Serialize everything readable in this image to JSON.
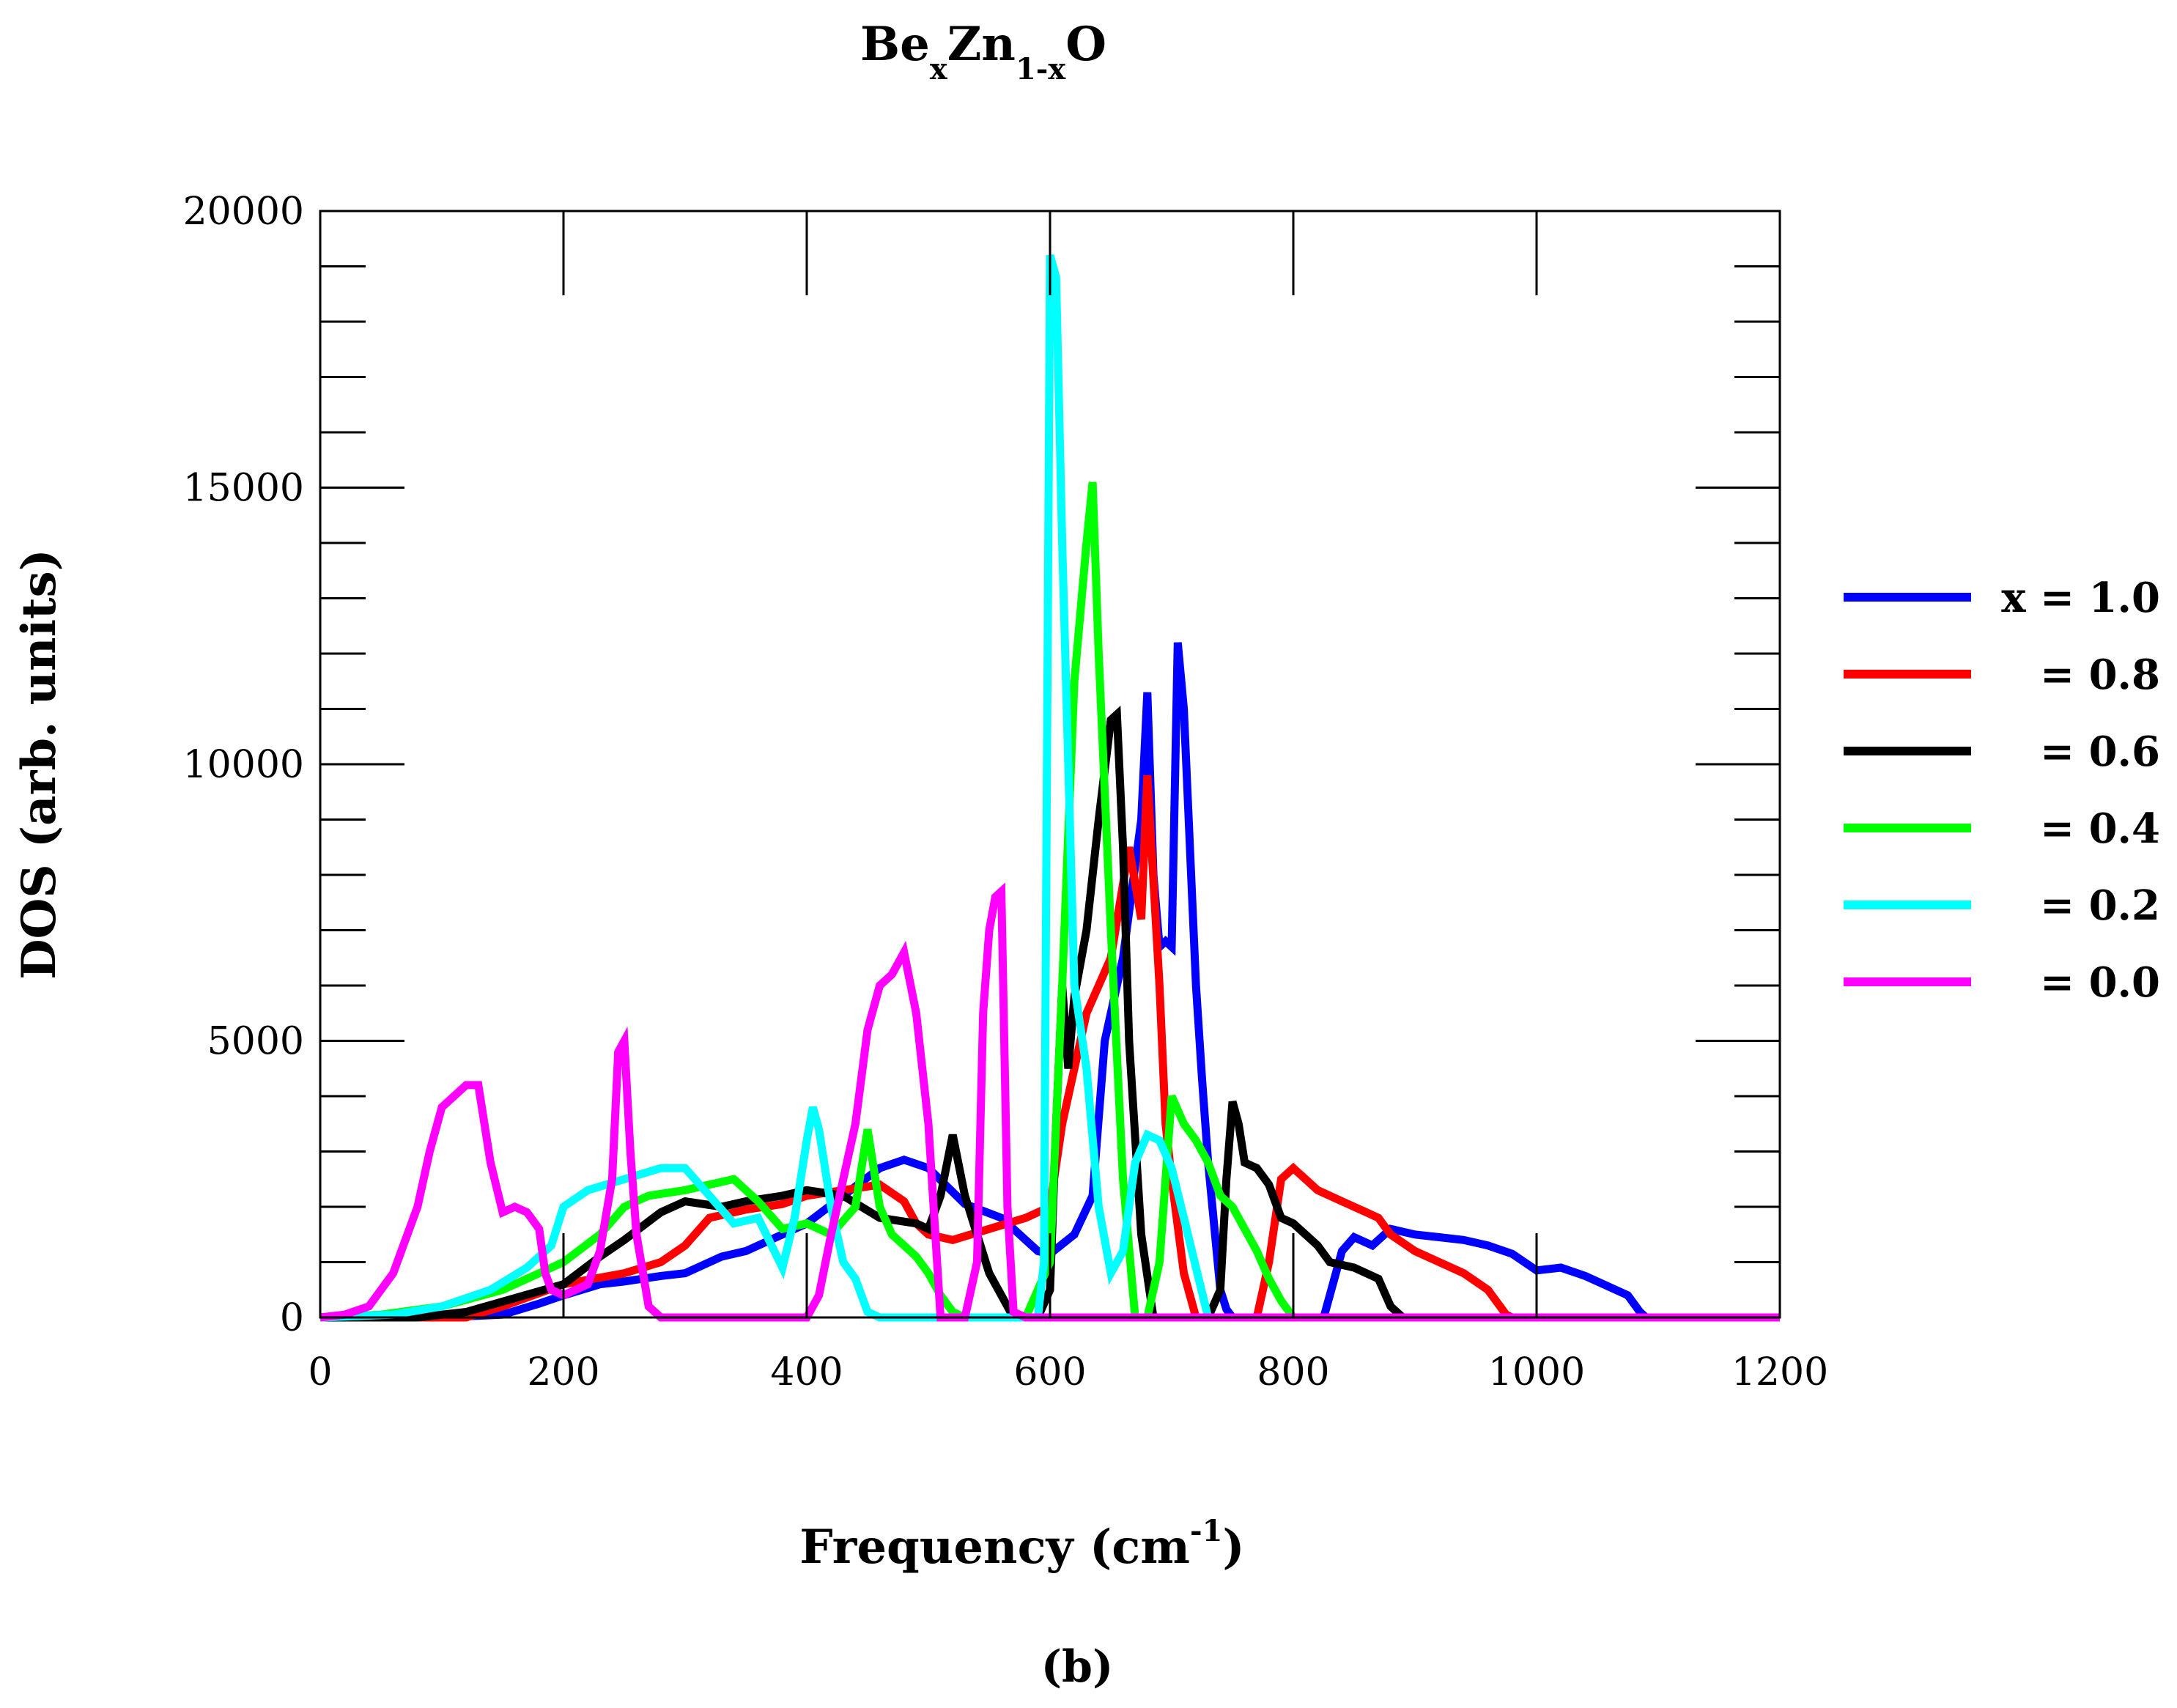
{
  "chart_data": {
    "type": "line",
    "title": {
      "parts": [
        "Be",
        "x",
        "Zn",
        "1-x",
        "O"
      ]
    },
    "xlabel": {
      "main": "Frequency (cm",
      "sup": "-1",
      "close": ")"
    },
    "ylabel": "DOS (arb. units)",
    "subcaption": "(b)",
    "xlim": [
      0,
      1200
    ],
    "ylim": [
      0,
      20000
    ],
    "xticks": [
      0,
      200,
      400,
      600,
      800,
      1000,
      1200
    ],
    "xtick_labels": [
      "0",
      "200",
      "400",
      "600",
      "800",
      "1000",
      "1200"
    ],
    "yticks": [
      0,
      5000,
      10000,
      15000,
      20000
    ],
    "ytick_labels": [
      "0",
      "5000",
      "10000",
      "15000",
      "20000"
    ],
    "x_minor_step": 200,
    "y_minor_step": 1000,
    "grid": false,
    "legend_position": "right",
    "series": [
      {
        "name": "x = 1.0",
        "color": "#0000ff",
        "x": [
          0,
          100,
          150,
          180,
          200,
          230,
          250,
          280,
          300,
          330,
          350,
          380,
          400,
          430,
          460,
          480,
          500,
          530,
          560,
          590,
          600,
          620,
          635,
          645,
          660,
          675,
          680,
          685,
          690,
          695,
          700,
          705,
          710,
          720,
          725,
          730,
          740,
          745,
          750,
          770,
          800,
          825,
          840,
          850,
          865,
          880,
          900,
          920,
          940,
          960,
          980,
          1000,
          1020,
          1040,
          1060,
          1075,
          1085,
          1090,
          1100,
          1200
        ],
        "y": [
          0,
          0,
          50,
          250,
          400,
          600,
          650,
          750,
          800,
          1100,
          1200,
          1500,
          1700,
          2200,
          2700,
          2850,
          2700,
          2050,
          1800,
          1200,
          1150,
          1500,
          2200,
          5000,
          6500,
          9000,
          11300,
          8000,
          6700,
          6800,
          6700,
          12200,
          11000,
          6000,
          4300,
          2800,
          500,
          150,
          0,
          0,
          0,
          0,
          1200,
          1450,
          1300,
          1600,
          1500,
          1450,
          1400,
          1300,
          1150,
          850,
          900,
          750,
          550,
          400,
          100,
          0,
          0,
          0
        ]
      },
      {
        "name": "= 0.8",
        "color": "#ff0000",
        "x": [
          0,
          120,
          150,
          200,
          250,
          280,
          300,
          320,
          350,
          380,
          400,
          430,
          460,
          480,
          490,
          500,
          520,
          550,
          580,
          590,
          600,
          610,
          630,
          650,
          665,
          675,
          680,
          690,
          695,
          700,
          710,
          720,
          730,
          760,
          770,
          775,
          780,
          790,
          800,
          820,
          840,
          860,
          870,
          880,
          900,
          920,
          940,
          960,
          970,
          975,
          980,
          1200
        ],
        "y": [
          0,
          0,
          200,
          600,
          800,
          1000,
          1300,
          1800,
          1950,
          2050,
          2200,
          2300,
          2400,
          2100,
          1700,
          1500,
          1400,
          1600,
          1800,
          1900,
          2000,
          3500,
          5500,
          6500,
          8500,
          7200,
          9800,
          6000,
          3500,
          2500,
          800,
          0,
          0,
          0,
          0,
          500,
          1000,
          2500,
          2700,
          2300,
          2100,
          1900,
          1800,
          1500,
          1200,
          1000,
          800,
          500,
          200,
          50,
          0,
          0
        ]
      },
      {
        "name": "= 0.6",
        "color": "#000000",
        "x": [
          0,
          80,
          120,
          200,
          230,
          250,
          280,
          300,
          330,
          350,
          380,
          400,
          430,
          460,
          490,
          500,
          510,
          520,
          530,
          540,
          550,
          570,
          580,
          590,
          600,
          605,
          610,
          615,
          620,
          630,
          640,
          650,
          655,
          660,
          665,
          675,
          685,
          690,
          695,
          700,
          730,
          740,
          745,
          750,
          755,
          760,
          770,
          780,
          790,
          800,
          820,
          830,
          850,
          870,
          880,
          890,
          1200
        ],
        "y": [
          0,
          0,
          100,
          600,
          1100,
          1400,
          1900,
          2100,
          2000,
          2100,
          2200,
          2300,
          2200,
          1800,
          1700,
          1600,
          2200,
          3300,
          2200,
          1500,
          800,
          0,
          0,
          0,
          500,
          3500,
          6000,
          4500,
          5800,
          7000,
          9000,
          10800,
          10900,
          8500,
          5000,
          1500,
          0,
          0,
          0,
          0,
          0,
          500,
          2500,
          3900,
          3500,
          2800,
          2700,
          2400,
          1800,
          1700,
          1300,
          1000,
          900,
          700,
          200,
          0,
          0
        ]
      },
      {
        "name": "= 0.4",
        "color": "#00ff00",
        "x": [
          0,
          50,
          100,
          150,
          200,
          230,
          250,
          270,
          300,
          320,
          340,
          360,
          380,
          400,
          420,
          440,
          450,
          460,
          470,
          480,
          490,
          500,
          510,
          520,
          530,
          540,
          550,
          580,
          600,
          610,
          620,
          630,
          635,
          640,
          650,
          660,
          670,
          680,
          690,
          700,
          710,
          720,
          730,
          740,
          750,
          760,
          770,
          780,
          790,
          800,
          820,
          1200
        ],
        "y": [
          0,
          50,
          200,
          500,
          1000,
          1500,
          2000,
          2200,
          2300,
          2400,
          2500,
          2100,
          1600,
          1700,
          1500,
          2000,
          3400,
          2000,
          1500,
          1300,
          1100,
          800,
          400,
          100,
          0,
          0,
          0,
          0,
          1000,
          6000,
          11500,
          14000,
          15100,
          12000,
          7000,
          2500,
          0,
          0,
          1000,
          4000,
          3500,
          3200,
          2800,
          2200,
          2000,
          1600,
          1200,
          700,
          300,
          0,
          0,
          0
        ]
      },
      {
        "name": "= 0.2",
        "color": "#00ffff",
        "x": [
          0,
          60,
          100,
          140,
          170,
          190,
          200,
          220,
          250,
          280,
          300,
          320,
          340,
          360,
          380,
          390,
          400,
          405,
          410,
          420,
          430,
          440,
          450,
          460,
          540,
          590,
          595,
          600,
          605,
          610,
          615,
          620,
          630,
          640,
          650,
          660,
          670,
          680,
          690,
          700,
          710,
          720,
          730,
          1200
        ],
        "y": [
          0,
          50,
          200,
          500,
          900,
          1300,
          2000,
          2300,
          2500,
          2700,
          2700,
          2200,
          1700,
          1800,
          900,
          1800,
          3200,
          3800,
          3400,
          2000,
          1000,
          700,
          100,
          0,
          0,
          0,
          1000,
          19200,
          18800,
          14000,
          10000,
          6000,
          4500,
          2000,
          800,
          1200,
          2800,
          3300,
          3200,
          2700,
          1800,
          900,
          0,
          0
        ]
      },
      {
        "name": "= 0.0",
        "color": "#ff00ff",
        "x": [
          0,
          20,
          40,
          60,
          80,
          90,
          100,
          110,
          120,
          130,
          140,
          150,
          160,
          170,
          180,
          185,
          190,
          200,
          220,
          230,
          240,
          245,
          250,
          255,
          260,
          270,
          280,
          300,
          400,
          410,
          420,
          430,
          440,
          450,
          460,
          470,
          480,
          490,
          500,
          510,
          520,
          530,
          540,
          545,
          550,
          555,
          560,
          565,
          570,
          580,
          620,
          640,
          660,
          1200
        ],
        "y": [
          0,
          50,
          200,
          800,
          2000,
          3000,
          3800,
          4000,
          4200,
          4200,
          2800,
          1900,
          2000,
          1900,
          1600,
          800,
          500,
          400,
          600,
          1200,
          2500,
          4800,
          5000,
          3000,
          1500,
          200,
          0,
          0,
          0,
          400,
          1500,
          2500,
          3500,
          5200,
          6000,
          6200,
          6600,
          5500,
          3500,
          0,
          0,
          0,
          1000,
          5500,
          7000,
          7600,
          7700,
          2000,
          100,
          0,
          0,
          0,
          0,
          0
        ]
      }
    ]
  }
}
